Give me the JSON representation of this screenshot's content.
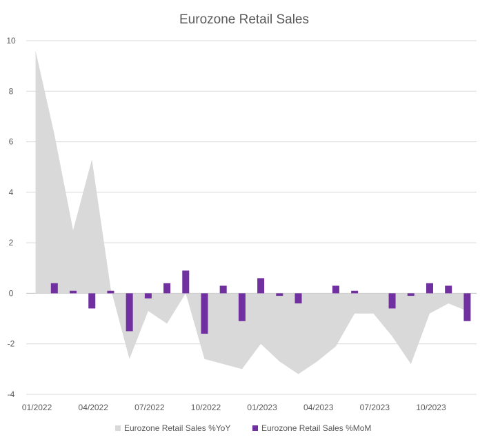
{
  "chart_data": {
    "type": "bar",
    "title": "Eurozone Retail Sales",
    "xlabel": "",
    "ylabel": "",
    "ylim": [
      -4,
      10
    ],
    "y_ticks": [
      -4,
      -2,
      0,
      2,
      4,
      6,
      8,
      10
    ],
    "grid": true,
    "legend_position": "bottom",
    "x_tick_labels": [
      "01/2022",
      "04/2022",
      "07/2022",
      "10/2022",
      "01/2023",
      "04/2023",
      "07/2023",
      "10/2023"
    ],
    "categories": [
      "01/2022",
      "02/2022",
      "03/2022",
      "04/2022",
      "05/2022",
      "06/2022",
      "07/2022",
      "08/2022",
      "09/2022",
      "10/2022",
      "11/2022",
      "12/2022",
      "01/2023",
      "02/2023",
      "03/2023",
      "04/2023",
      "05/2023",
      "06/2023",
      "07/2023",
      "08/2023",
      "09/2023",
      "10/2023",
      "11/2023",
      "12/2023"
    ],
    "series": [
      {
        "name": "Eurozone Retail Sales %YoY",
        "type": "area",
        "color": "#D9D9D9",
        "values": [
          9.6,
          6.3,
          2.5,
          5.3,
          0.2,
          -2.6,
          -0.7,
          -1.2,
          0.0,
          -2.6,
          -2.8,
          -3.0,
          -2.0,
          -2.7,
          -3.2,
          -2.7,
          -2.1,
          -0.8,
          -0.8,
          -1.7,
          -2.8,
          -0.8,
          -0.4,
          -0.7
        ]
      },
      {
        "name": "Eurozone Retail Sales %MoM",
        "type": "bar",
        "color": "#7030A0",
        "values": [
          null,
          0.4,
          0.1,
          -0.6,
          0.1,
          -1.5,
          -0.2,
          0.4,
          0.9,
          -1.6,
          0.3,
          -1.1,
          0.6,
          -0.1,
          -0.4,
          0.0,
          0.3,
          0.1,
          0.0,
          -0.6,
          -0.1,
          0.4,
          0.3,
          -1.1
        ]
      }
    ]
  }
}
